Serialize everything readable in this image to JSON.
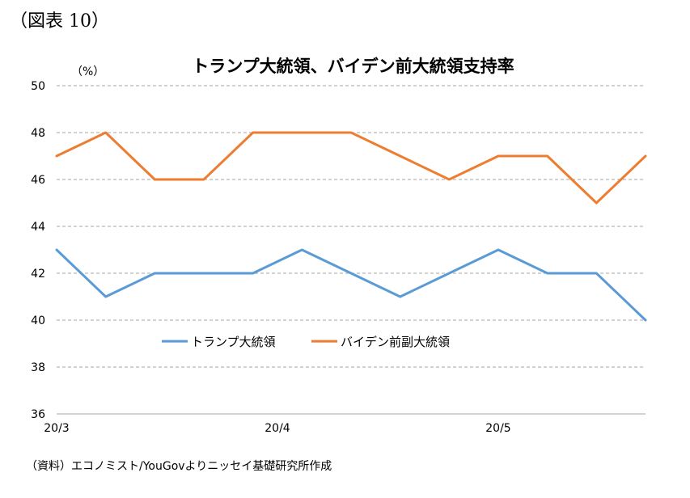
{
  "figure_label": "（図表 10）",
  "source_note": "（資料）エコノミスト/YouGovよりニッセイ基礎研究所作成",
  "chart_data": {
    "type": "line",
    "title": "トランプ大統領、バイデン前大統領支持率",
    "unit": "（%）",
    "ylim": [
      36,
      50
    ],
    "yticks": [
      36,
      38,
      40,
      42,
      44,
      46,
      48,
      50
    ],
    "x_tick_labels": [
      "20/3",
      "20/4",
      "20/5"
    ],
    "x_tick_positions": [
      0,
      4.5,
      9
    ],
    "n_points": 13,
    "grid": true,
    "legend_position": "center",
    "series": [
      {
        "name": "トランプ大統領",
        "color": "#5B9BD5",
        "values": [
          43,
          41,
          42,
          42,
          42,
          43,
          42,
          41,
          42,
          43,
          42,
          42,
          40
        ]
      },
      {
        "name": "バイデン前副大統領",
        "color": "#ED7D31",
        "values": [
          47,
          48,
          46,
          46,
          48,
          48,
          48,
          47,
          46,
          47,
          47,
          45,
          47
        ]
      }
    ]
  }
}
